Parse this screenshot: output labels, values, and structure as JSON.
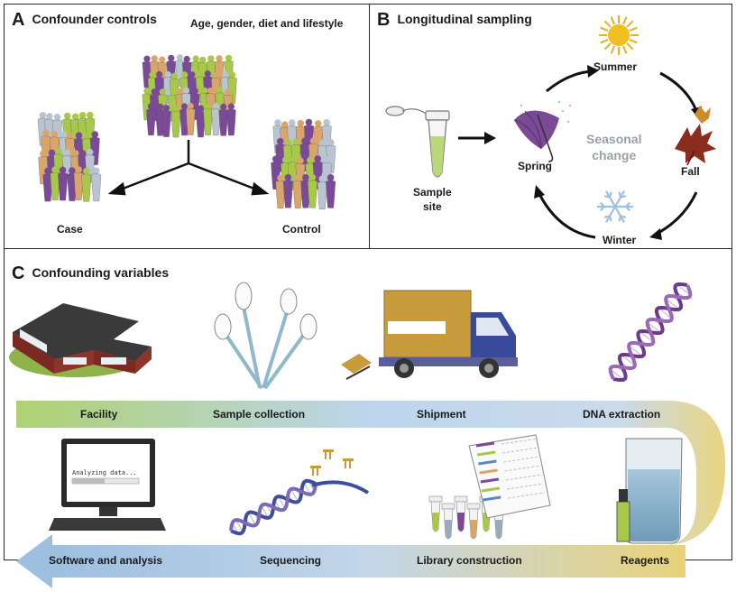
{
  "panel_a": {
    "letter": "A",
    "title": "Confounder controls",
    "subtitle": "Age, gender, diet and lifestyle",
    "case_label": "Case",
    "control_label": "Control"
  },
  "panel_b": {
    "letter": "B",
    "title": "Longitudinal sampling",
    "sample_label_1": "Sample",
    "sample_label_2": "site",
    "summer": "Summer",
    "fall": "Fall",
    "winter": "Winter",
    "spring": "Spring",
    "center_1": "Seasonal",
    "center_2": "change"
  },
  "panel_c": {
    "letter": "C",
    "title": "Confounding variables",
    "screen_text": "Analyzing data...",
    "steps_top": [
      "Facility",
      "Sample collection",
      "Shipment",
      "DNA extraction"
    ],
    "steps_bottom": [
      "Software and analysis",
      "Sequencing",
      "Library construction",
      "Reagents"
    ]
  },
  "colors": {
    "purple": "#7b4a96",
    "green": "#a8c84a",
    "gray_blue": "#b8c4d0",
    "tan": "#d9a56b",
    "arrow_green": "#a9cf6a",
    "arrow_blue": "#b7cfe6",
    "arrow_yellow": "#e8d27a"
  }
}
